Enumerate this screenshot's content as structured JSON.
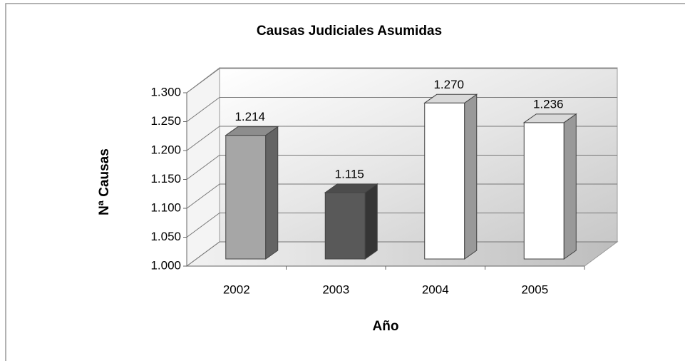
{
  "chart_data": {
    "type": "bar3d",
    "title": "Causas Judiciales Asumidas",
    "x_label": "Año",
    "y_label": "Nª Causas",
    "categories": [
      "2002",
      "2003",
      "2004",
      "2005"
    ],
    "values": [
      1214,
      1115,
      1270,
      1236
    ],
    "value_labels": [
      "1.214",
      "1.115",
      "1.270",
      "1.236"
    ],
    "colors": [
      "#a6a6a6",
      "#595959",
      "#ffffff",
      "#ffffff"
    ],
    "ylim": [
      1000,
      1300
    ],
    "yticks": [
      {
        "value": 1000,
        "label": "1.000"
      },
      {
        "value": 1050,
        "label": "1.050"
      },
      {
        "value": 1100,
        "label": "1.100"
      },
      {
        "value": 1150,
        "label": "1.150"
      },
      {
        "value": 1200,
        "label": "1.200"
      },
      {
        "value": 1250,
        "label": "1.250"
      },
      {
        "value": 1300,
        "label": "1.300"
      }
    ],
    "grid": true
  }
}
